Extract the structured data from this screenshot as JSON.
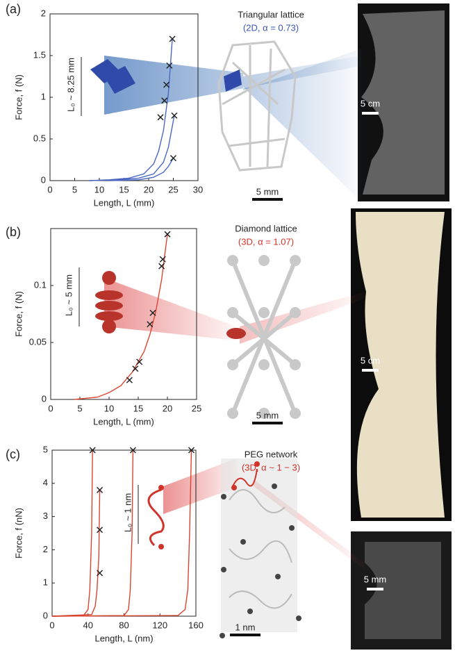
{
  "chart_data": [
    {
      "type": "line",
      "panel": "(a)",
      "xlabel": "Length, L (mm)",
      "ylabel": "Force, f (N)",
      "xlim": [
        0,
        30
      ],
      "ylim": [
        0,
        2
      ],
      "xticks": [
        0,
        5,
        10,
        15,
        20,
        25,
        30
      ],
      "yticks": [
        0,
        0.5,
        1,
        1.5,
        2
      ],
      "inset_title": "Triangular lattice",
      "inset_subtitle": "(2D, α = 0.73)",
      "inset_color": "#3a55b5",
      "scale_inset": "5 mm",
      "scale_photo": "5 cm",
      "length_label": "L₀ ~ 8.25 mm",
      "series": [
        {
          "color": "#4a67c4",
          "x": [
            8,
            12,
            16,
            19,
            21,
            22,
            23,
            24,
            24.8
          ],
          "values": [
            0,
            0.01,
            0.03,
            0.08,
            0.2,
            0.35,
            0.6,
            1.05,
            1.7
          ]
        },
        {
          "color": "#4a67c4",
          "x": [
            8,
            14,
            18,
            21,
            23,
            24,
            25.2
          ],
          "values": [
            0,
            0.01,
            0.03,
            0.08,
            0.22,
            0.4,
            0.78
          ]
        },
        {
          "color": "#4a67c4",
          "x": [
            12,
            18,
            21,
            23,
            24,
            25
          ],
          "values": [
            0,
            0.01,
            0.04,
            0.1,
            0.17,
            0.27
          ]
        },
        {
          "color": "#222222",
          "marker": "x",
          "x": [
            24.8,
            24.2,
            23.6,
            23.2,
            22.4,
            25.2,
            25
          ],
          "values": [
            1.7,
            1.38,
            1.15,
            0.96,
            0.76,
            0.78,
            0.27
          ]
        }
      ]
    },
    {
      "type": "line",
      "panel": "(b)",
      "xlabel": "Length, L (mm)",
      "ylabel": "Force, f (N)",
      "xlim": [
        0,
        25
      ],
      "ylim": [
        0,
        0.15
      ],
      "xticks": [
        0,
        5,
        10,
        15,
        20,
        25
      ],
      "yticks": [
        0,
        0.05,
        0.1
      ],
      "inset_title": "Diamond lattice",
      "inset_subtitle": "(3D, α = 1.07)",
      "inset_color": "#d1332a",
      "scale_inset": "5 mm",
      "scale_photo": "5 cm",
      "length_label": "L₀ ~ 5 mm",
      "series": [
        {
          "color": "#e0452f",
          "x": [
            4,
            8,
            10,
            12,
            14,
            16,
            17,
            18,
            19,
            20
          ],
          "values": [
            0,
            0.002,
            0.006,
            0.012,
            0.024,
            0.042,
            0.057,
            0.077,
            0.105,
            0.145
          ]
        },
        {
          "color": "#222222",
          "marker": "x",
          "x": [
            13.5,
            14.5,
            15.2,
            17,
            17.5,
            19,
            19.2,
            20
          ],
          "values": [
            0.017,
            0.027,
            0.033,
            0.066,
            0.076,
            0.117,
            0.123,
            0.145
          ]
        }
      ]
    },
    {
      "type": "line",
      "panel": "(c)",
      "xlabel": "Length, L (nm)",
      "ylabel": "Force, f (nN)",
      "xlim": [
        0,
        160
      ],
      "ylim": [
        0,
        5
      ],
      "xticks": [
        0,
        40,
        80,
        120,
        160
      ],
      "yticks": [
        0,
        1,
        2,
        3,
        4,
        5
      ],
      "inset_title": "PEG network",
      "inset_subtitle": "(3D, α ~ 1 − 3)",
      "inset_color": "#d1332a",
      "scale_inset": "1 nm",
      "scale_photo": "5 mm",
      "length_label": "L₀ ~ 1 nm",
      "series": [
        {
          "color": "#d8452f",
          "x": [
            0,
            35,
            40,
            42,
            44,
            45
          ],
          "values": [
            0,
            0.02,
            0.2,
            0.8,
            2.5,
            5
          ]
        },
        {
          "color": "#d8452f",
          "x": [
            0,
            44,
            48,
            50,
            52,
            53
          ],
          "values": [
            0,
            0.05,
            0.3,
            0.8,
            1.8,
            3.8
          ]
        },
        {
          "color": "#d8452f",
          "x": [
            0,
            80,
            85,
            87,
            89,
            90
          ],
          "values": [
            0,
            0.02,
            0.2,
            0.8,
            2.5,
            5
          ]
        },
        {
          "color": "#d8452f",
          "x": [
            0,
            140,
            148,
            151,
            153,
            155
          ],
          "values": [
            0,
            0.02,
            0.2,
            0.8,
            2.5,
            5
          ]
        },
        {
          "color": "#222222",
          "marker": "x",
          "x": [
            45,
            53,
            53,
            53,
            90,
            155
          ],
          "values": [
            5,
            3.8,
            2.6,
            1.3,
            5,
            5
          ]
        }
      ]
    }
  ]
}
